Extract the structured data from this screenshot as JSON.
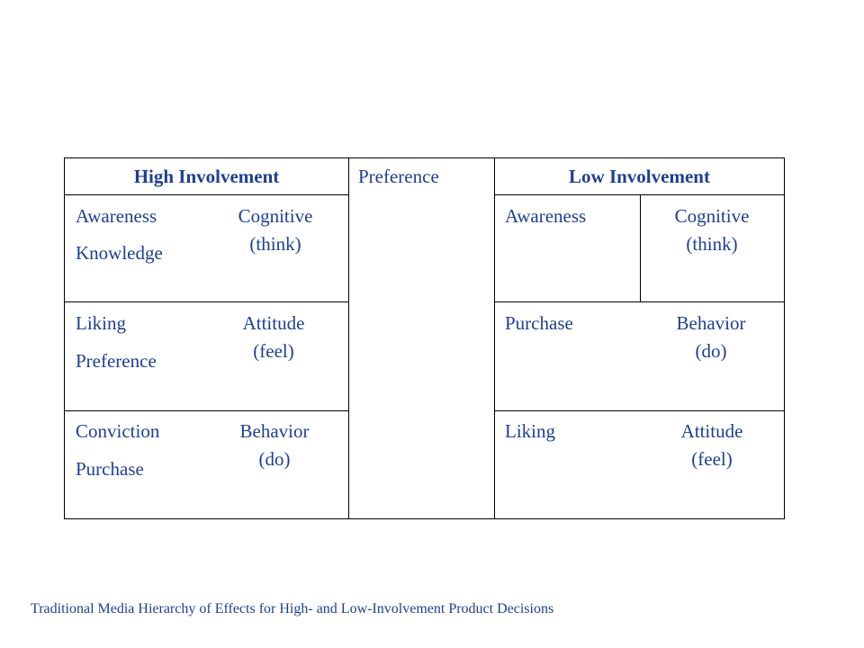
{
  "diagram": {
    "middle_header": "Preference",
    "high": {
      "header": "High Involvement",
      "rows": [
        {
          "steps": [
            "Awareness",
            "Knowledge"
          ],
          "stage": [
            "Cognitive",
            "(think)"
          ]
        },
        {
          "steps": [
            "Liking",
            "Preference"
          ],
          "stage": [
            "Attitude",
            "(feel)"
          ]
        },
        {
          "steps": [
            "Conviction",
            "Purchase"
          ],
          "stage": [
            "Behavior",
            "(do)"
          ]
        }
      ]
    },
    "low": {
      "header": "Low Involvement",
      "rows": [
        {
          "step": "Awareness",
          "stage": [
            "Cognitive",
            "(think)"
          ]
        },
        {
          "step": "Purchase",
          "stage": [
            "Behavior",
            "(do)"
          ]
        },
        {
          "step": "Liking",
          "stage": [
            "Attitude",
            "(feel)"
          ]
        }
      ]
    },
    "caption": "Traditional Media Hierarchy of Effects for High- and Low-Involvement Product Decisions"
  }
}
